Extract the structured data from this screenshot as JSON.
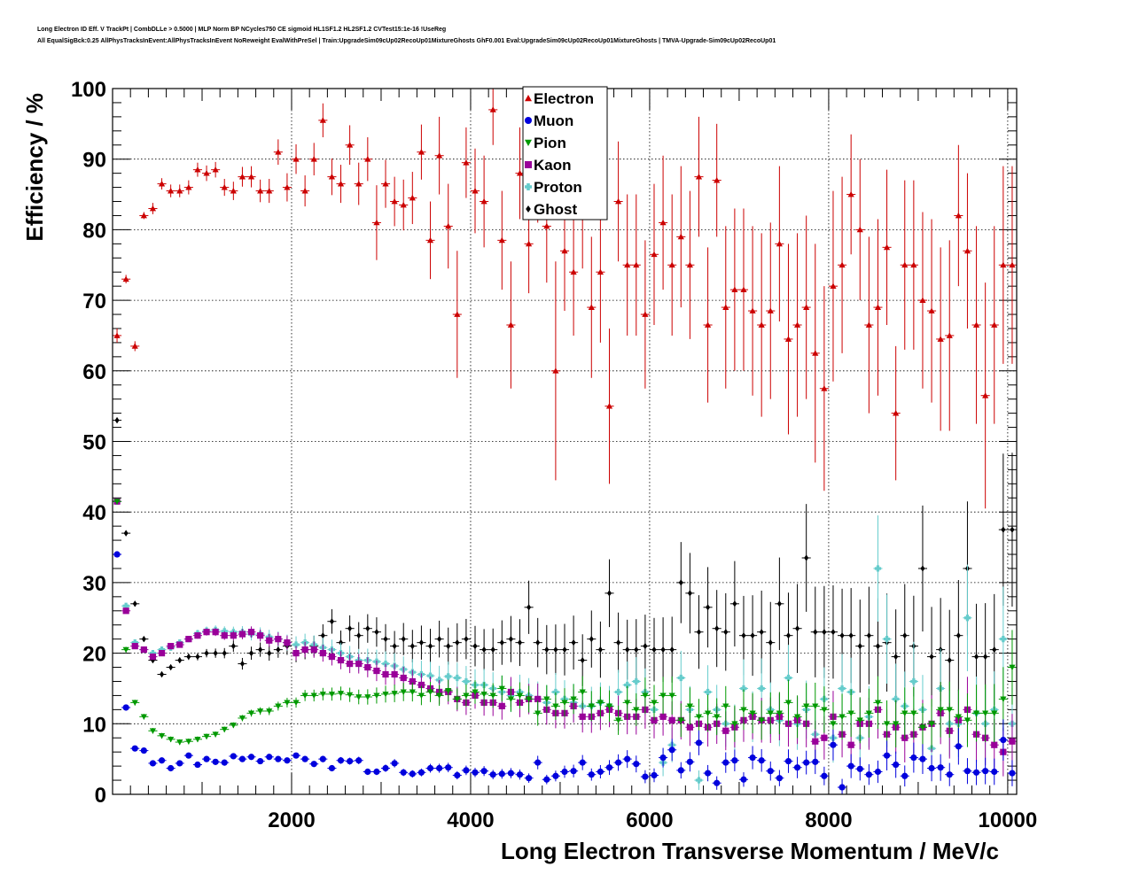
{
  "header": {
    "line1": "Long Electron ID Eff. V TrackPt | CombDLLe > 0.5000 | MLP Norm BP NCycles750 CE sigmoid HL1SF1.2 HL2SF1.2 CVTest15:1e-16 !UseReg",
    "line2": "All EqualSigBck:0.25 AllPhysTracksInEvent:AllPhysTracksInEvent NoReweight EvalWithPreSel | Train:UpgradeSim09cUp02RecoUp01MixtureGhosts GhF0.001 Eval:UpgradeSim09cUp02RecoUp01MixtureGhosts | TMVA-Upgrade-Sim09cUp02RecoUp01"
  },
  "chart_data": {
    "type": "scatter",
    "xlabel": "Long Electron Transverse Momentum / MeV/c",
    "ylabel": "Efficiency / %",
    "xlim": [
      0,
      10100
    ],
    "ylim": [
      0,
      100
    ],
    "xticks": [
      2000,
      4000,
      6000,
      8000,
      10000
    ],
    "yticks": [
      0,
      10,
      20,
      30,
      40,
      50,
      60,
      70,
      80,
      90,
      100
    ],
    "grid": true,
    "legend_position": "top-center",
    "x": [
      50,
      150,
      250,
      350,
      450,
      550,
      650,
      750,
      850,
      950,
      1050,
      1150,
      1250,
      1350,
      1450,
      1550,
      1650,
      1750,
      1850,
      1950,
      2050,
      2150,
      2250,
      2350,
      2450,
      2550,
      2650,
      2750,
      2850,
      2950,
      3050,
      3150,
      3250,
      3350,
      3450,
      3550,
      3650,
      3750,
      3850,
      3950,
      4050,
      4150,
      4250,
      4350,
      4450,
      4550,
      4650,
      4750,
      4850,
      4950,
      5050,
      5150,
      5250,
      5350,
      5450,
      5550,
      5650,
      5750,
      5850,
      5950,
      6050,
      6150,
      6250,
      6350,
      6450,
      6550,
      6650,
      6750,
      6850,
      6950,
      7050,
      7150,
      7250,
      7350,
      7450,
      7550,
      7650,
      7750,
      7850,
      7950,
      8050,
      8150,
      8250,
      8350,
      8450,
      8550,
      8650,
      8750,
      8850,
      8950,
      9050,
      9150,
      9250,
      9350,
      9450,
      9550,
      9650,
      9750,
      9850,
      9950,
      10050
    ],
    "series": [
      {
        "name": "Electron",
        "color": "#cc0000",
        "marker": "triangle-up",
        "values": [
          65,
          73,
          63.5,
          82,
          83,
          86.5,
          85.5,
          85.5,
          86,
          88.5,
          88,
          88.5,
          86,
          85.5,
          87.5,
          87.5,
          85.5,
          85.5,
          91,
          86,
          90,
          85.5,
          90,
          95.5,
          87.5,
          86.5,
          92,
          86.5,
          90,
          81,
          86.5,
          84,
          83.5,
          84.5,
          91,
          78.5,
          90.5,
          80.5,
          68,
          89.5,
          85.5,
          84,
          97,
          78.5,
          66.5,
          88,
          78,
          89,
          80.5,
          60,
          77,
          74,
          82.5,
          69,
          74,
          55,
          84,
          75,
          75,
          68,
          76.5,
          81,
          75,
          79,
          75,
          87.5,
          66.5,
          87,
          69,
          71.5,
          71.5,
          68.5,
          66.5,
          68.5,
          78,
          64.5,
          66.5,
          69,
          62.5,
          57.5,
          72,
          75,
          85,
          80,
          66.5,
          69,
          77.5,
          54,
          75,
          75,
          70,
          68.5,
          64.5,
          65,
          82,
          77,
          66.5,
          56.5,
          66.5,
          75,
          75
        ],
        "errors": [
          1,
          0.6,
          0.7,
          0.5,
          0.8,
          0.8,
          0.9,
          0.9,
          1.0,
          1.0,
          1.1,
          1.1,
          1.2,
          1.3,
          1.4,
          1.5,
          1.6,
          1.7,
          1.8,
          2.0,
          2.1,
          2.2,
          2.3,
          2.4,
          2.6,
          2.7,
          2.8,
          3.0,
          3.1,
          5.3,
          3.4,
          3.5,
          3.6,
          3.7,
          3.9,
          5.5,
          5.5,
          6.0,
          9.0,
          5.0,
          6.0,
          6.5,
          5.0,
          7.0,
          9.0,
          6.5,
          7.0,
          8.0,
          8.0,
          15.5,
          8.5,
          9.0,
          8.0,
          10.0,
          10.0,
          11.0,
          8.5,
          10.0,
          10.0,
          10.5,
          10.0,
          9.5,
          10.0,
          10.0,
          10.5,
          8.5,
          11.0,
          8.0,
          11.5,
          11.5,
          11.5,
          12.0,
          13.0,
          12.5,
          11.0,
          13.5,
          13.0,
          13.0,
          15.5,
          14.5,
          13.5,
          12.5,
          8.5,
          10.0,
          12.5,
          12.5,
          11.0,
          9.5,
          12.0,
          12.0,
          12.5,
          13.0,
          13.0,
          13.5,
          10.0,
          11.0,
          14.0,
          16.0,
          14.0,
          14.0,
          14.0
        ]
      },
      {
        "name": "Muon",
        "color": "#0000dd",
        "marker": "circle",
        "values": [
          34,
          12.3,
          6.5,
          6.2,
          4.4,
          4.8,
          3.7,
          4.4,
          5.5,
          4.2,
          5,
          4.6,
          4.5,
          5.4,
          5,
          5.3,
          4.7,
          5.3,
          5,
          4.8,
          5.5,
          5,
          4.3,
          5,
          3.7,
          4.8,
          4.7,
          4.8,
          3.2,
          3.2,
          3.7,
          4.4,
          3.1,
          2.9,
          3.1,
          3.7,
          3.7,
          3.8,
          2.7,
          3.4,
          3.1,
          3.3,
          2.8,
          2.9,
          3,
          2.8,
          2.3,
          4.5,
          2.1,
          2.6,
          3.2,
          3.3,
          4.5,
          2.8,
          3.2,
          3.8,
          4.5,
          5,
          4.3,
          2.5,
          2.7,
          5.2,
          6.3,
          3.4,
          4.6,
          7.3,
          3,
          1.6,
          4.5,
          4.8,
          2.1,
          5.2,
          4.8,
          3.3,
          2.3,
          4.7,
          3.8,
          4.5,
          4.6,
          2.6,
          7,
          1,
          4,
          3.6,
          2.8,
          3.2,
          5.5,
          4.2,
          2.6,
          5.2,
          5,
          3.7,
          3.8,
          2.8,
          6.8,
          3.3,
          3.1,
          3.3,
          3.2,
          7.7,
          3
        ]
      },
      {
        "name": "Pion",
        "color": "#009900",
        "marker": "triangle-down",
        "values": [
          41.5,
          20.5,
          13,
          11,
          9,
          8.3,
          7.8,
          7.4,
          7.5,
          7.8,
          8.2,
          8.5,
          9.2,
          9.8,
          10.8,
          11.5,
          11.8,
          11.8,
          12.5,
          13,
          13,
          14,
          14,
          14.2,
          14.2,
          14.3,
          14.1,
          13.8,
          13.8,
          14,
          14.2,
          14.3,
          14.5,
          14.5,
          14,
          14.5,
          14,
          14.7,
          13.5,
          14,
          14.5,
          14.2,
          14,
          15,
          13.5,
          14,
          13.5,
          11.5,
          13.5,
          12.5,
          13,
          13.5,
          14.5,
          12.5,
          13,
          12.5,
          10.5,
          13,
          12,
          14,
          13,
          14,
          14,
          10.5,
          12.5,
          11,
          11.5,
          11,
          12.5,
          10,
          12,
          11.5,
          10.5,
          11.5,
          11.5,
          13,
          11,
          12.5,
          12.5,
          12,
          10,
          11,
          11.5,
          10.5,
          11.5,
          13,
          10,
          10,
          11.5,
          11.5,
          9.5,
          10,
          12,
          12,
          11,
          10.5,
          11.5,
          11.5,
          11.5,
          13.5,
          18
        ]
      },
      {
        "name": "Kaon",
        "color": "#990099",
        "marker": "square",
        "values": [
          41.5,
          26,
          21,
          20.5,
          19.5,
          20,
          21,
          21.2,
          22,
          22.5,
          23,
          23,
          22.5,
          22.5,
          22.7,
          23,
          22.5,
          21.8,
          22,
          21.5,
          20,
          20.5,
          20.5,
          20,
          19.5,
          19,
          18.5,
          18.5,
          18,
          17.5,
          17,
          17,
          16.5,
          16,
          15.5,
          15,
          14.5,
          14.5,
          13.5,
          13,
          14,
          13,
          13,
          12.5,
          14.5,
          13,
          13.5,
          13.5,
          12,
          11.5,
          11.5,
          12.5,
          11,
          11,
          11.5,
          12,
          11.5,
          11,
          11,
          12,
          10.5,
          11,
          10.5,
          10.5,
          9.5,
          10,
          9.5,
          10,
          9,
          9.5,
          10.5,
          11,
          10.5,
          10.5,
          11,
          10,
          10.5,
          10,
          7.5,
          8,
          11,
          8.5,
          7,
          10,
          10,
          12,
          8.5,
          9.5,
          8,
          8.5,
          9.5,
          10,
          11.5,
          9,
          10.5,
          12,
          8.5,
          8,
          7,
          6,
          7.5
        ]
      },
      {
        "name": "Proton",
        "color": "#66cccc",
        "marker": "cross",
        "values": [
          41.5,
          26.7,
          21.5,
          20.5,
          20,
          20.5,
          20.8,
          21.5,
          22,
          22.8,
          23.2,
          23.3,
          23.1,
          23,
          23,
          22.7,
          22.7,
          22.3,
          22,
          21.5,
          21.2,
          21.5,
          21.2,
          20.8,
          20.5,
          20,
          19.5,
          19,
          19,
          18.8,
          18.5,
          18.2,
          17.7,
          17.3,
          17,
          16.8,
          16.2,
          16.7,
          16.5,
          16,
          15.5,
          15.5,
          15,
          14.5,
          14,
          14.5,
          14,
          13.5,
          13,
          14.5,
          13.5,
          13,
          12.5,
          12.5,
          13,
          12.5,
          14.5,
          15.5,
          16,
          14.5,
          12,
          4.5,
          7,
          16.5,
          12,
          2,
          14.5,
          12,
          10,
          9.5,
          15,
          11,
          15,
          12,
          10.5,
          16.5,
          10,
          12,
          8.5,
          13.5,
          8,
          15,
          14.5,
          8,
          11,
          32,
          22,
          13.5,
          12.5,
          16,
          12,
          6.5,
          15,
          10,
          10,
          25,
          11.5,
          10,
          12,
          22,
          10
        ]
      },
      {
        "name": "Ghost",
        "color": "#000000",
        "marker": "diamond",
        "values": [
          53,
          37,
          27,
          22,
          19,
          17,
          18,
          19,
          19.5,
          19.5,
          20,
          20,
          20,
          21,
          18.5,
          20,
          20.5,
          20,
          20.5,
          21,
          20,
          20.5,
          21,
          22.5,
          24.5,
          21.5,
          23.5,
          22.5,
          23.5,
          23,
          22,
          21,
          22,
          21,
          21.5,
          21,
          22,
          21,
          21.5,
          22,
          21,
          20.5,
          20.5,
          21.5,
          22,
          21.5,
          26.5,
          21.5,
          20.5,
          20.5,
          20.5,
          21.5,
          19,
          22,
          20.5,
          28.5,
          21.5,
          20.5,
          20.5,
          21,
          20.5,
          20.5,
          20.5,
          30,
          28.5,
          23,
          26.5,
          23.5,
          23,
          27,
          22.5,
          22.5,
          23,
          21.5,
          27,
          22.5,
          23.5,
          33.5,
          23,
          23,
          23,
          22.5,
          22.5,
          21,
          22.5,
          21,
          21.5,
          19.5,
          22.5,
          21,
          32,
          19.5,
          20.5,
          19,
          22.5,
          32,
          19.5,
          19.5,
          20.5,
          37.5,
          37.5
        ]
      }
    ]
  }
}
